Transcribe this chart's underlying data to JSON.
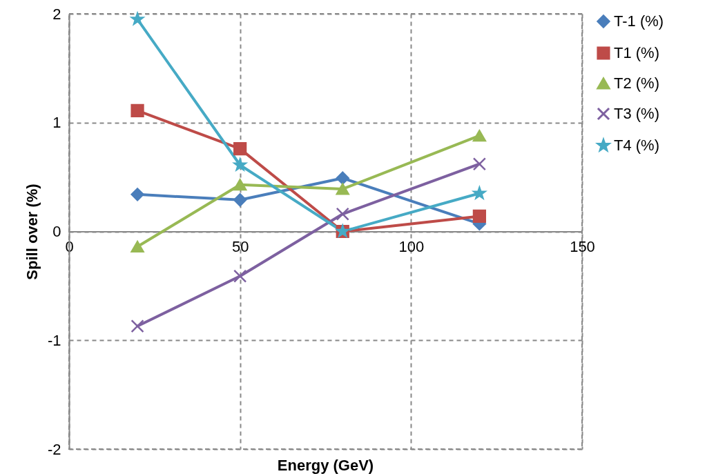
{
  "chart_data": {
    "type": "line",
    "xlabel": "Energy (GeV)",
    "ylabel": "Spill over (%)",
    "x": [
      20,
      50,
      80,
      120
    ],
    "xlim": [
      0,
      150
    ],
    "xticks": [
      0,
      50,
      100,
      150
    ],
    "ylim": [
      -2,
      2
    ],
    "yticks": [
      -2,
      -1,
      0,
      1,
      2
    ],
    "grid": true,
    "legend": "top right",
    "line_style": "solid",
    "series": [
      {
        "name": "T-1 (%)",
        "color": "#4a7ebb",
        "marker": "diamond",
        "values": [
          0.34,
          0.29,
          0.49,
          0.07
        ]
      },
      {
        "name": "T1 (%)",
        "color": "#be4b48",
        "marker": "square",
        "values": [
          1.11,
          0.76,
          0,
          0.14
        ]
      },
      {
        "name": "T2 (%)",
        "color": "#98b954",
        "marker": "triangle",
        "values": [
          -0.14,
          0.43,
          0.39,
          0.88
        ]
      },
      {
        "name": "T3 (%)",
        "color": "#7d60a0",
        "marker": "cross",
        "values": [
          -0.87,
          -0.41,
          0.16,
          0.62
        ]
      },
      {
        "name": "T4 (%)",
        "color": "#46aac5",
        "marker": "star",
        "values": [
          1.95,
          0.61,
          0,
          0.35
        ]
      }
    ]
  }
}
